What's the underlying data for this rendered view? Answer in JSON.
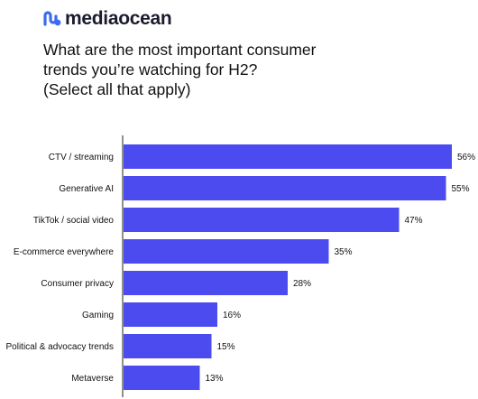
{
  "brand": {
    "name": "mediaocean",
    "color": "#3b6cf0"
  },
  "question": {
    "lines": [
      "What are the most important consumer",
      "trends you’re watching for H2?",
      "(Select all that apply)"
    ]
  },
  "chart_data": {
    "type": "bar",
    "orientation": "horizontal",
    "categories": [
      "CTV / streaming",
      "Generative AI",
      "TikTok / social video",
      "E-commerce everywhere",
      "Consumer privacy",
      "Gaming",
      "Political & advocacy trends",
      "Metaverse"
    ],
    "values": [
      56,
      55,
      47,
      35,
      28,
      16,
      15,
      13
    ],
    "value_labels": [
      "56%",
      "55%",
      "47%",
      "35%",
      "28%",
      "16%",
      "15%",
      "13%"
    ],
    "unit": "%",
    "xlim": [
      0,
      56
    ],
    "bar_color": "#4b4bf0",
    "axis_color": "#222222",
    "grid": false,
    "legend": "none"
  }
}
